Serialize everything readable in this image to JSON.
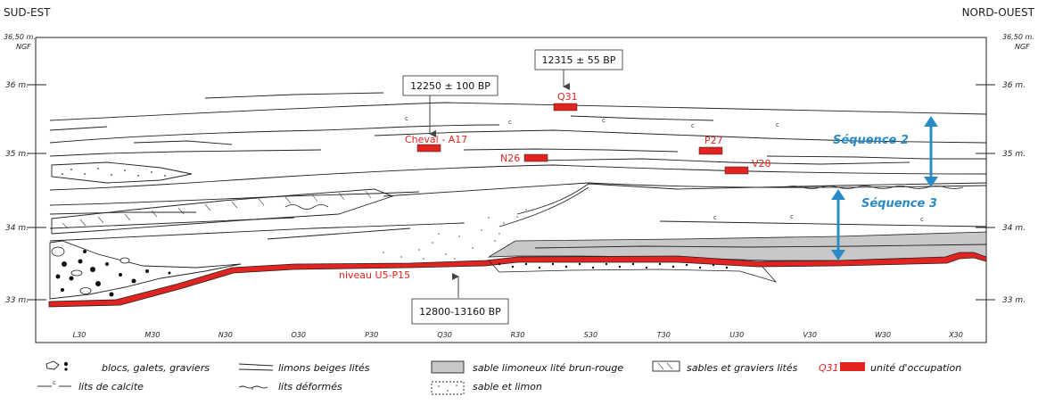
{
  "side_labels": {
    "left": "SUD-EST",
    "right": "NORD-OUEST"
  },
  "elevations": {
    "left": [
      "36,50 m.",
      "NGF",
      "36 m.",
      "35 m.",
      "34 m.",
      "33 m."
    ],
    "right": [
      "36,50 m.",
      "NGF",
      "36 m.",
      "35 m.",
      "34 m.",
      "33 m."
    ]
  },
  "grid_labels": [
    "L30",
    "M30",
    "N30",
    "O30",
    "P30",
    "Q30",
    "R30",
    "S30",
    "T30",
    "U30",
    "V30",
    "W30",
    "X30"
  ],
  "dates": {
    "date_top_right": "12315 ± 55 BP",
    "date_top_left": "12250 ± 100 BP",
    "date_bottom": "12800-13160 BP"
  },
  "samples": {
    "q31": "Q31",
    "cheval": "Cheval - A17",
    "n26": "N26",
    "p27": "P27",
    "v28": "V28",
    "niveau": "niveau U5-P15"
  },
  "sequences": {
    "seq2": "Séquence 2",
    "seq3": "Séquence 3"
  },
  "calcite_mark": "c",
  "legend": {
    "blocs": "blocs, galets, graviers",
    "calcite": "lits de calcite",
    "limons": "limons beiges lités",
    "deformes": "lits déformés",
    "sable_brun": "sable limoneux lité brun-rouge",
    "sable_limon": "sable et limon",
    "sables_graviers": "sables et graviers lités",
    "occupation_code": "Q31",
    "occupation": "unité d'occupation"
  },
  "colors": {
    "occupation_red": "#e1241f",
    "sequence_blue": "#2a8cc6",
    "sable_grey": "#c8c8c8"
  }
}
